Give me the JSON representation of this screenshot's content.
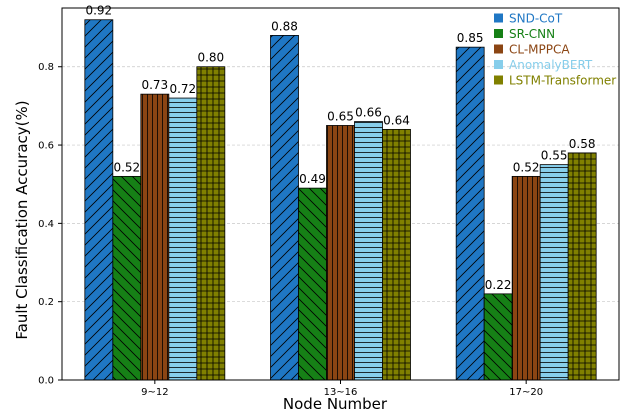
{
  "chart_data": {
    "type": "bar",
    "xlabel": "Node Number",
    "ylabel": "Fault Classification Accuracy(%)",
    "ylim": [
      0,
      0.95
    ],
    "yticks": [
      "0.0",
      "0.2",
      "0.4",
      "0.6",
      "0.8"
    ],
    "categories": [
      "9~12",
      "13~16",
      "17~20"
    ],
    "grid": "horizontal dashed",
    "legend_position": "top-right",
    "series": [
      {
        "name": "SND-CoT",
        "values": [
          0.92,
          0.88,
          0.85
        ],
        "labels": [
          "0.92",
          "0.88",
          "0.85"
        ],
        "color": "#1f77c4",
        "hatch": "diagonal",
        "legend_text_color": "#1f77c4"
      },
      {
        "name": "SR-CNN",
        "values": [
          0.52,
          0.49,
          0.22
        ],
        "labels": [
          "0.52",
          "0.49",
          "0.22"
        ],
        "color": "#168016",
        "hatch": "backslash",
        "legend_text_color": "#168016"
      },
      {
        "name": "CL-MPPCA",
        "values": [
          0.73,
          0.65,
          0.52
        ],
        "labels": [
          "0.73",
          "0.65",
          "0.52"
        ],
        "color": "#8b4513",
        "hatch": "vertical",
        "legend_text_color": "#8b4513"
      },
      {
        "name": "AnomalyBERT",
        "values": [
          0.72,
          0.66,
          0.55
        ],
        "labels": [
          "0.72",
          "0.66",
          "0.55"
        ],
        "color": "#87ceeb",
        "hatch": "horizontal",
        "legend_text_color": "#87ceeb"
      },
      {
        "name": "LSTM-Transformer",
        "values": [
          0.8,
          0.64,
          0.58
        ],
        "labels": [
          "0.80",
          "0.64",
          "0.58"
        ],
        "color": "#808000",
        "hatch": "grid",
        "legend_text_color": "#808000"
      }
    ]
  }
}
